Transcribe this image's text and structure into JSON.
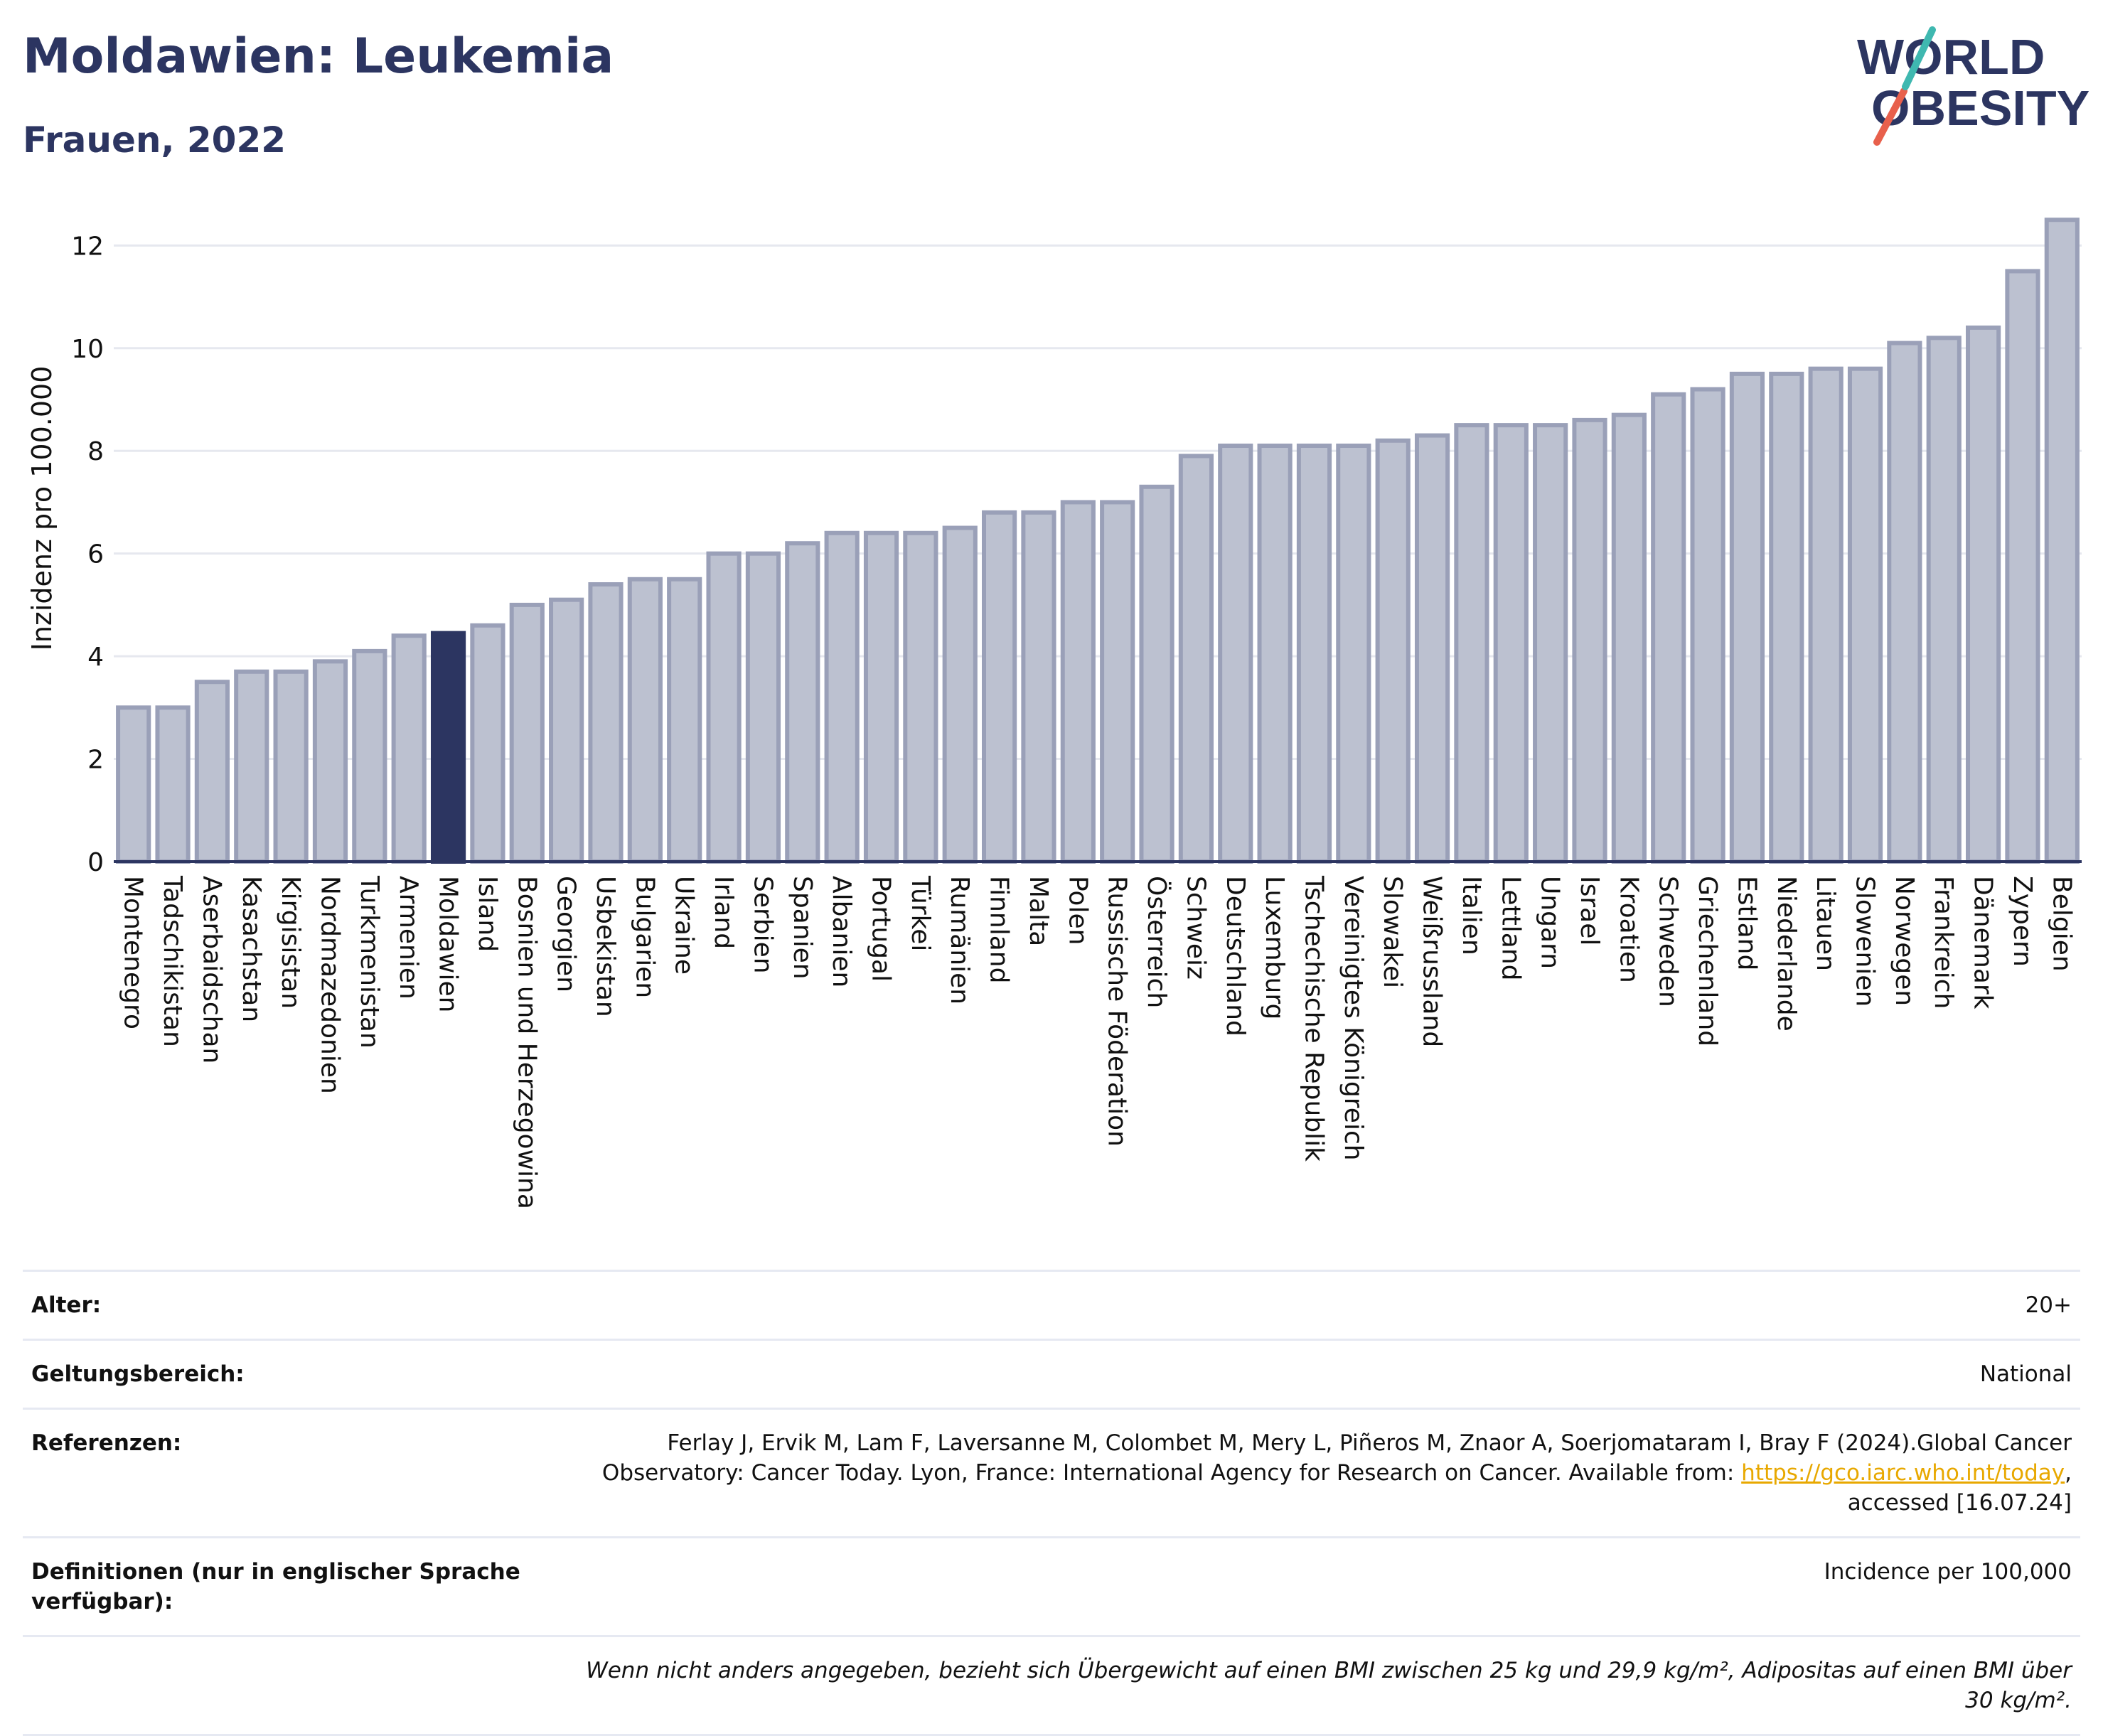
{
  "header": {
    "title": "Moldawien: Leukemia",
    "subtitle": "Frauen, 2022"
  },
  "logo": {
    "line1": "WORLD",
    "line2": "OBESITY"
  },
  "chart_data": {
    "type": "bar",
    "ylabel": "Inzidenz pro 100.000",
    "ylim": [
      0,
      12.6
    ],
    "yticks": [
      0,
      2,
      4,
      6,
      8,
      10,
      12
    ],
    "grid": true,
    "highlight": "Moldawien",
    "colors": {
      "bar": "#bcc1d0",
      "bar_edge": "#9aa0b8",
      "highlight": "#2c3561",
      "grid": "#e6e8ef",
      "axis": "#2c3561"
    },
    "categories": [
      "Montenegro",
      "Tadschikistan",
      "Aserbaidschan",
      "Kasachstan",
      "Kirgisistan",
      "Nordmazedonien",
      "Turkmenistan",
      "Armenien",
      "Moldawien",
      "Island",
      "Bosnien und Herzegowina",
      "Georgien",
      "Usbekistan",
      "Bulgarien",
      "Ukraine",
      "Irland",
      "Serbien",
      "Spanien",
      "Albanien",
      "Portugal",
      "Türkei",
      "Rumänien",
      "Finnland",
      "Malta",
      "Polen",
      "Russische Föderation",
      "Österreich",
      "Schweiz",
      "Deutschland",
      "Luxemburg",
      "Tschechische Republik",
      "Vereinigtes Königreich",
      "Slowakei",
      "Weißrussland",
      "Italien",
      "Lettland",
      "Ungarn",
      "Israel",
      "Kroatien",
      "Schweden",
      "Griechenland",
      "Estland",
      "Niederlande",
      "Litauen",
      "Slowenien",
      "Norwegen",
      "Frankreich",
      "Dänemark",
      "Zypern",
      "Belgien"
    ],
    "values": [
      3.0,
      3.0,
      3.5,
      3.7,
      3.7,
      3.9,
      4.1,
      4.4,
      4.45,
      4.6,
      5.0,
      5.1,
      5.4,
      5.5,
      5.5,
      6.0,
      6.0,
      6.2,
      6.4,
      6.4,
      6.4,
      6.5,
      6.8,
      6.8,
      7.0,
      7.0,
      7.3,
      7.9,
      8.1,
      8.1,
      8.1,
      8.1,
      8.2,
      8.3,
      8.5,
      8.5,
      8.5,
      8.6,
      8.7,
      9.1,
      9.2,
      9.5,
      9.5,
      9.6,
      9.6,
      10.1,
      10.2,
      10.4,
      11.5,
      12.5
    ]
  },
  "info": {
    "age_label": "Alter:",
    "age_value": "20+",
    "scope_label": "Geltungsbereich:",
    "scope_value": "National",
    "ref_label": "Referenzen:",
    "ref_text_1": "Ferlay J, Ervik M, Lam F, Laversanne M, Colombet M, Mery L, Piñeros M, Znaor A, Soerjomataram I, Bray F (2024).Global Cancer Observatory: Cancer Today. Lyon, France: International Agency for Research on Cancer. Available from: ",
    "ref_link": "https://gco.iarc.who.int/today",
    "ref_text_2": ", accessed [16.07.24]",
    "def_label": "Definitionen (nur in englischer Sprache verfügbar):",
    "def_value": "Incidence per 100,000",
    "note": "Wenn nicht anders angegeben, bezieht sich Übergewicht auf einen BMI zwischen 25 kg und 29,9 kg/m², Adipositas auf einen BMI über 30 kg/m²."
  }
}
